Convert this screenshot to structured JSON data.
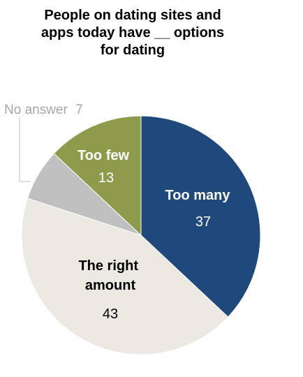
{
  "chart_data": {
    "type": "pie",
    "title": "People on dating sites and apps today have __ options for dating",
    "slices": [
      {
        "label": "Too many",
        "value": 37,
        "color": "#1f497d",
        "label_color": "#ffffff"
      },
      {
        "label": "The right amount",
        "value": 43,
        "color": "#ece9e3",
        "label_color": "#000000"
      },
      {
        "label": "No answer",
        "value": 7,
        "color": "#c0c0c0",
        "label_color": "#a6a6a6"
      },
      {
        "label": "Too few",
        "value": 13,
        "color": "#8f9b4b",
        "label_color": "#ffffff"
      }
    ]
  }
}
